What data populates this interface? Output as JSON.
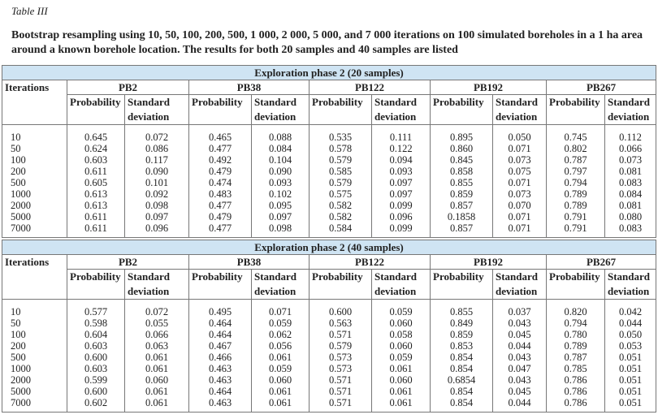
{
  "label": "Table III",
  "caption": "Bootstrap resampling using 10, 50, 100, 200, 500, 1 000, 2 000, 5 000, and 7 000 iterations on 100 simulated boreholes in a 1 ha area around a known borehole location. The results for both 20 samples and 40 samples are listed",
  "header": {
    "first": "Iterations",
    "groups": [
      "PB2",
      "PB38",
      "PB122",
      "PB192",
      "PB267"
    ],
    "sub": [
      "Probability",
      "Standard deviation"
    ]
  },
  "sections": [
    {
      "title": "Exploration phase 2 (20 samples)",
      "rows": [
        [
          "10",
          "0.645",
          "0.072",
          "0.465",
          "0.088",
          "0.535",
          "0.111",
          "0.895",
          "0.050",
          "0.745",
          "0.112"
        ],
        [
          "50",
          "0.624",
          "0.086",
          "0.477",
          "0.084",
          "0.578",
          "0.122",
          "0.860",
          "0.071",
          "0.802",
          "0.066"
        ],
        [
          "100",
          "0.603",
          "0.117",
          "0.492",
          "0.104",
          "0.579",
          "0.094",
          "0.845",
          "0.073",
          "0.787",
          "0.073"
        ],
        [
          "200",
          "0.611",
          "0.090",
          "0.479",
          "0.090",
          "0.585",
          "0.093",
          "0.858",
          "0.075",
          "0.797",
          "0.081"
        ],
        [
          "500",
          "0.605",
          "0.101",
          "0.474",
          "0.093",
          "0.579",
          "0.097",
          "0.855",
          "0.071",
          "0.794",
          "0.083"
        ],
        [
          "1000",
          "0.613",
          "0.092",
          "0.483",
          "0.102",
          "0.575",
          "0.097",
          "0.859",
          "0.073",
          "0.789",
          "0.084"
        ],
        [
          "2000",
          "0.613",
          "0.098",
          "0.477",
          "0.095",
          "0.582",
          "0.099",
          "0.857",
          "0.070",
          "0.789",
          "0.081"
        ],
        [
          "5000",
          "0.611",
          "0.097",
          "0.479",
          "0.097",
          "0.582",
          "0.096",
          "0.1858",
          "0.071",
          "0.791",
          "0.080"
        ],
        [
          "7000",
          "0.611",
          "0.096",
          "0.477",
          "0.098",
          "0.584",
          "0.099",
          "0.857",
          "0.071",
          "0.791",
          "0.083"
        ]
      ]
    },
    {
      "title": "Exploration phase 2 (40 samples)",
      "rows": [
        [
          "10",
          "0.577",
          "0.072",
          "0.495",
          "0.071",
          "0.600",
          "0.059",
          "0.855",
          "0.037",
          "0.820",
          "0.042"
        ],
        [
          "50",
          "0.598",
          "0.055",
          "0.464",
          "0.059",
          "0.563",
          "0.060",
          "0.849",
          "0.043",
          "0.794",
          "0.044"
        ],
        [
          "100",
          "0.604",
          "0.066",
          "0.464",
          "0.062",
          "0.571",
          "0.058",
          "0.859",
          "0.045",
          "0.780",
          "0.050"
        ],
        [
          "200",
          "0.603",
          "0.063",
          "0.467",
          "0.056",
          "0.579",
          "0.060",
          "0.853",
          "0.044",
          "0.789",
          "0.053"
        ],
        [
          "500",
          "0.600",
          "0.061",
          "0.466",
          "0.061",
          "0.573",
          "0.059",
          "0.854",
          "0.043",
          "0.787",
          "0.051"
        ],
        [
          "1000",
          "0.603",
          "0.061",
          "0.463",
          "0.059",
          "0.573",
          "0.061",
          "0.854",
          "0.047",
          "0.785",
          "0.051"
        ],
        [
          "2000",
          "0.599",
          "0.060",
          "0.463",
          "0.060",
          "0.571",
          "0.060",
          "0.6854",
          "0.043",
          "0.786",
          "0.051"
        ],
        [
          "5000",
          "0.600",
          "0.061",
          "0.464",
          "0.061",
          "0.571",
          "0.061",
          "0.854",
          "0.045",
          "0.786",
          "0.051"
        ],
        [
          "7000",
          "0.602",
          "0.061",
          "0.463",
          "0.061",
          "0.571",
          "0.061",
          "0.854",
          "0.044",
          "0.786",
          "0.051"
        ]
      ]
    }
  ]
}
